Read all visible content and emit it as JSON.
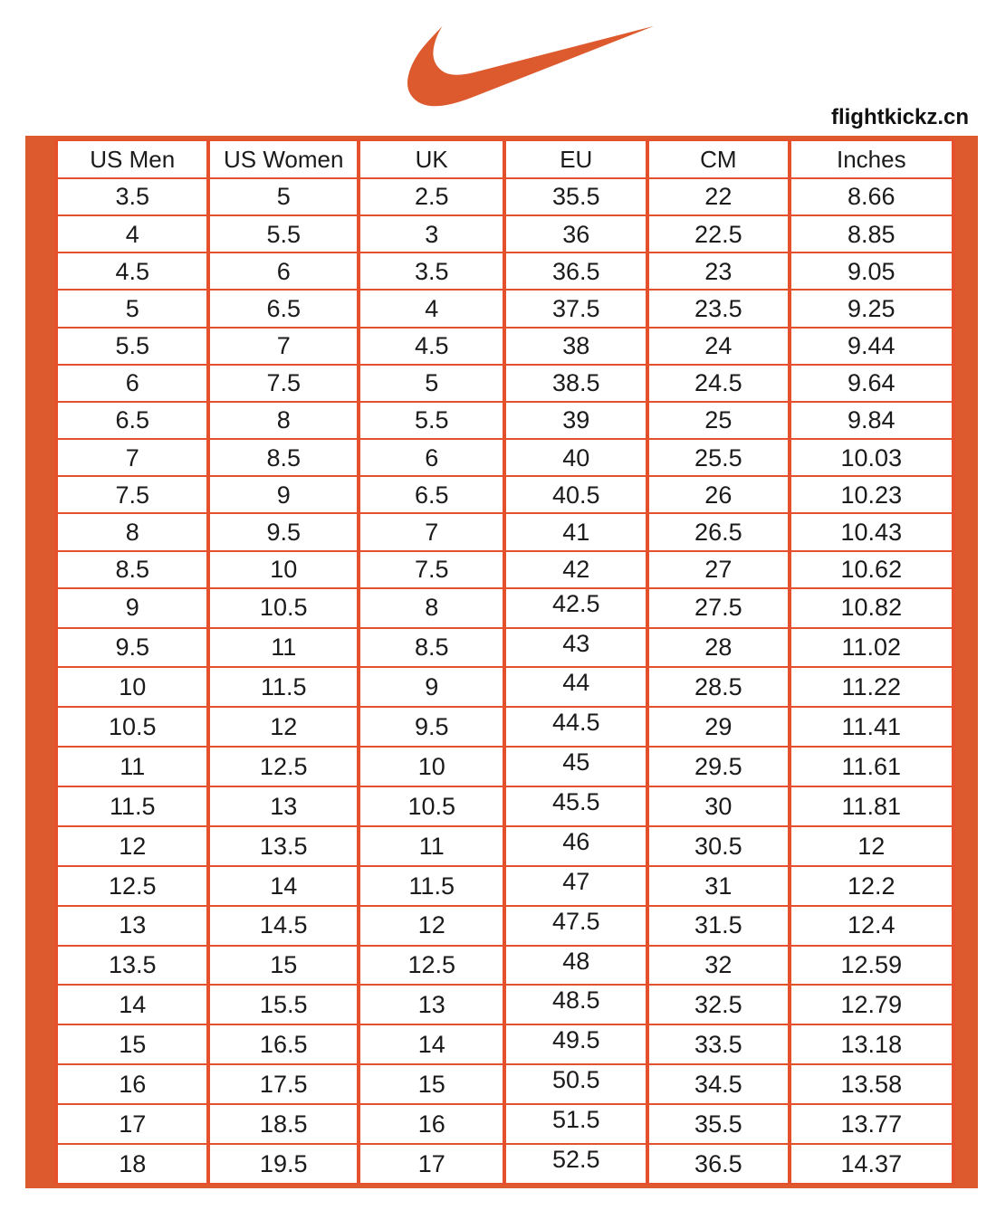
{
  "brand": {
    "logo_icon": "nike-swoosh",
    "website": "flightkickz.cn"
  },
  "colors": {
    "accent": "#DC5A2D",
    "grid_border": "#E5512D",
    "text": "#1B1B1B",
    "background": "#FFFFFF"
  },
  "chart_data": {
    "type": "table",
    "columns": [
      "US Men",
      "US Women",
      "UK",
      "EU",
      "CM",
      "Inches"
    ],
    "rows": [
      [
        "3.5",
        "5",
        "2.5",
        "35.5",
        "22",
        "8.66"
      ],
      [
        "4",
        "5.5",
        "3",
        "36",
        "22.5",
        "8.85"
      ],
      [
        "4.5",
        "6",
        "3.5",
        "36.5",
        "23",
        "9.05"
      ],
      [
        "5",
        "6.5",
        "4",
        "37.5",
        "23.5",
        "9.25"
      ],
      [
        "5.5",
        "7",
        "4.5",
        "38",
        "24",
        "9.44"
      ],
      [
        "6",
        "7.5",
        "5",
        "38.5",
        "24.5",
        "9.64"
      ],
      [
        "6.5",
        "8",
        "5.5",
        "39",
        "25",
        "9.84"
      ],
      [
        "7",
        "8.5",
        "6",
        "40",
        "25.5",
        "10.03"
      ],
      [
        "7.5",
        "9",
        "6.5",
        "40.5",
        "26",
        "10.23"
      ],
      [
        "8",
        "9.5",
        "7",
        "41",
        "26.5",
        "10.43"
      ],
      [
        "8.5",
        "10",
        "7.5",
        "42",
        "27",
        "10.62"
      ],
      [
        "9",
        "10.5",
        "8",
        "42.5",
        "27.5",
        "10.82"
      ],
      [
        "9.5",
        "11",
        "8.5",
        "43",
        "28",
        "11.02"
      ],
      [
        "10",
        "11.5",
        "9",
        "44",
        "28.5",
        "11.22"
      ],
      [
        "10.5",
        "12",
        "9.5",
        "44.5",
        "29",
        "11.41"
      ],
      [
        "11",
        "12.5",
        "10",
        "45",
        "29.5",
        "11.61"
      ],
      [
        "11.5",
        "13",
        "10.5",
        "45.5",
        "30",
        "11.81"
      ],
      [
        "12",
        "13.5",
        "11",
        "46",
        "30.5",
        "12"
      ],
      [
        "12.5",
        "14",
        "11.5",
        "47",
        "31",
        "12.2"
      ],
      [
        "13",
        "14.5",
        "12",
        "47.5",
        "31.5",
        "12.4"
      ],
      [
        "13.5",
        "15",
        "12.5",
        "48",
        "32",
        "12.59"
      ],
      [
        "14",
        "15.5",
        "13",
        "48.5",
        "32.5",
        "12.79"
      ],
      [
        "15",
        "16.5",
        "14",
        "49.5",
        "33.5",
        "13.18"
      ],
      [
        "16",
        "17.5",
        "15",
        "50.5",
        "34.5",
        "13.58"
      ],
      [
        "17",
        "18.5",
        "16",
        "51.5",
        "35.5",
        "13.77"
      ],
      [
        "18",
        "19.5",
        "17",
        "52.5",
        "36.5",
        "14.37"
      ]
    ]
  }
}
